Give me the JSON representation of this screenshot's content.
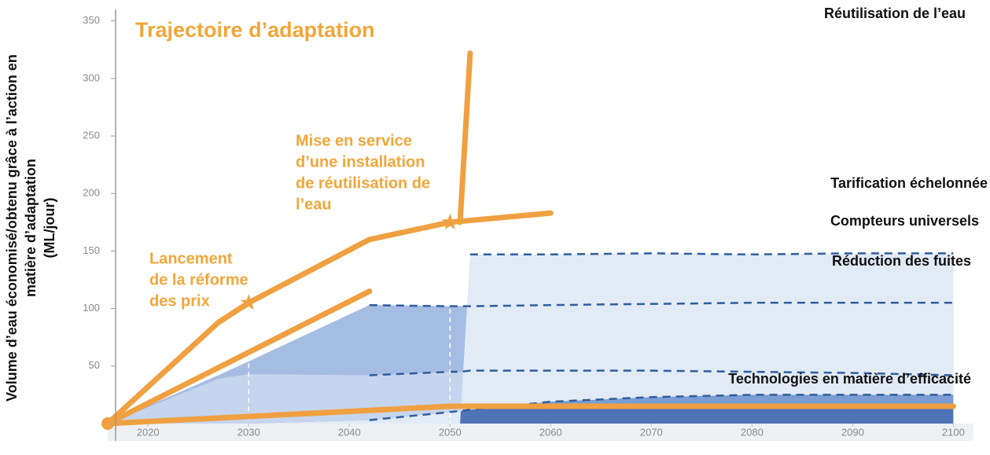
{
  "chart_data": {
    "type": "stacked_area",
    "title": "Trajectoire d’adaptation",
    "y_label": [
      "Volume d’eau économisé/obtenu grâce à l’action en",
      "matière d’adaptation",
      "(ML/jour)"
    ],
    "x": [
      2016,
      2027,
      2030,
      2042,
      2050,
      2051,
      2052,
      2060,
      2070,
      2080,
      2090,
      2100
    ],
    "series": [
      {
        "name": "Technologies en matière d’efficacité",
        "color": "#4f74b8",
        "values": [
          0,
          7,
          8,
          12,
          15,
          15,
          15,
          15,
          15,
          15,
          15,
          15
        ]
      },
      {
        "name": "Réduction des fuites",
        "color": "#7b9dd3",
        "values": [
          0,
          42,
          54,
          103,
          102,
          102,
          102,
          103,
          104,
          105,
          105,
          105
        ]
      },
      {
        "name": "Compteurs universels",
        "color": "#a6bde3",
        "values": [
          0,
          39,
          43,
          42,
          45,
          45,
          46,
          46,
          46,
          45,
          44,
          42
        ]
      },
      {
        "name": "Tarification échelonnée",
        "color": "#c6d5ee",
        "values": [
          0,
          0,
          0,
          3,
          10,
          11,
          12,
          19,
          23,
          25,
          25,
          25
        ]
      },
      {
        "name": "Réutilisation de l’eau",
        "color": "#e2eaf6",
        "values": [
          0,
          0,
          0,
          0,
          0,
          0,
          147,
          147,
          148,
          147,
          148,
          148
        ]
      }
    ],
    "pathways": [
      {
        "color": "#f0a040",
        "x": [
          2016,
          2027,
          2030,
          2042,
          2050,
          2060
        ],
        "values": [
          0,
          88,
          105,
          160,
          175,
          183
        ]
      },
      {
        "color": "#f0a040",
        "x": [
          2051,
          2052
        ],
        "values": [
          175,
          322
        ]
      },
      {
        "color": "#f0a040",
        "x": [
          2016,
          2042
        ],
        "values": [
          0,
          115
        ]
      },
      {
        "color": "#f0a040",
        "x": [
          2016,
          2050,
          2100
        ],
        "values": [
          0,
          15,
          15
        ]
      }
    ],
    "milestones": {
      "x": [
        2030,
        2050
      ],
      "values": [
        105,
        175
      ],
      "labels": [
        [
          "Lancement",
          "de la réforme",
          "des prix"
        ],
        [
          "Mise en service",
          "d’une installation",
          "de réutilisation de",
          "l’eau"
        ]
      ]
    },
    "xlim": [
      2016,
      2102
    ],
    "xticks": [
      2020,
      2030,
      2040,
      2050,
      2060,
      2070,
      2080,
      2090,
      2100
    ],
    "ylim": [
      0,
      360
    ],
    "yticks": [
      50,
      100,
      150,
      200,
      250,
      300,
      350
    ]
  }
}
